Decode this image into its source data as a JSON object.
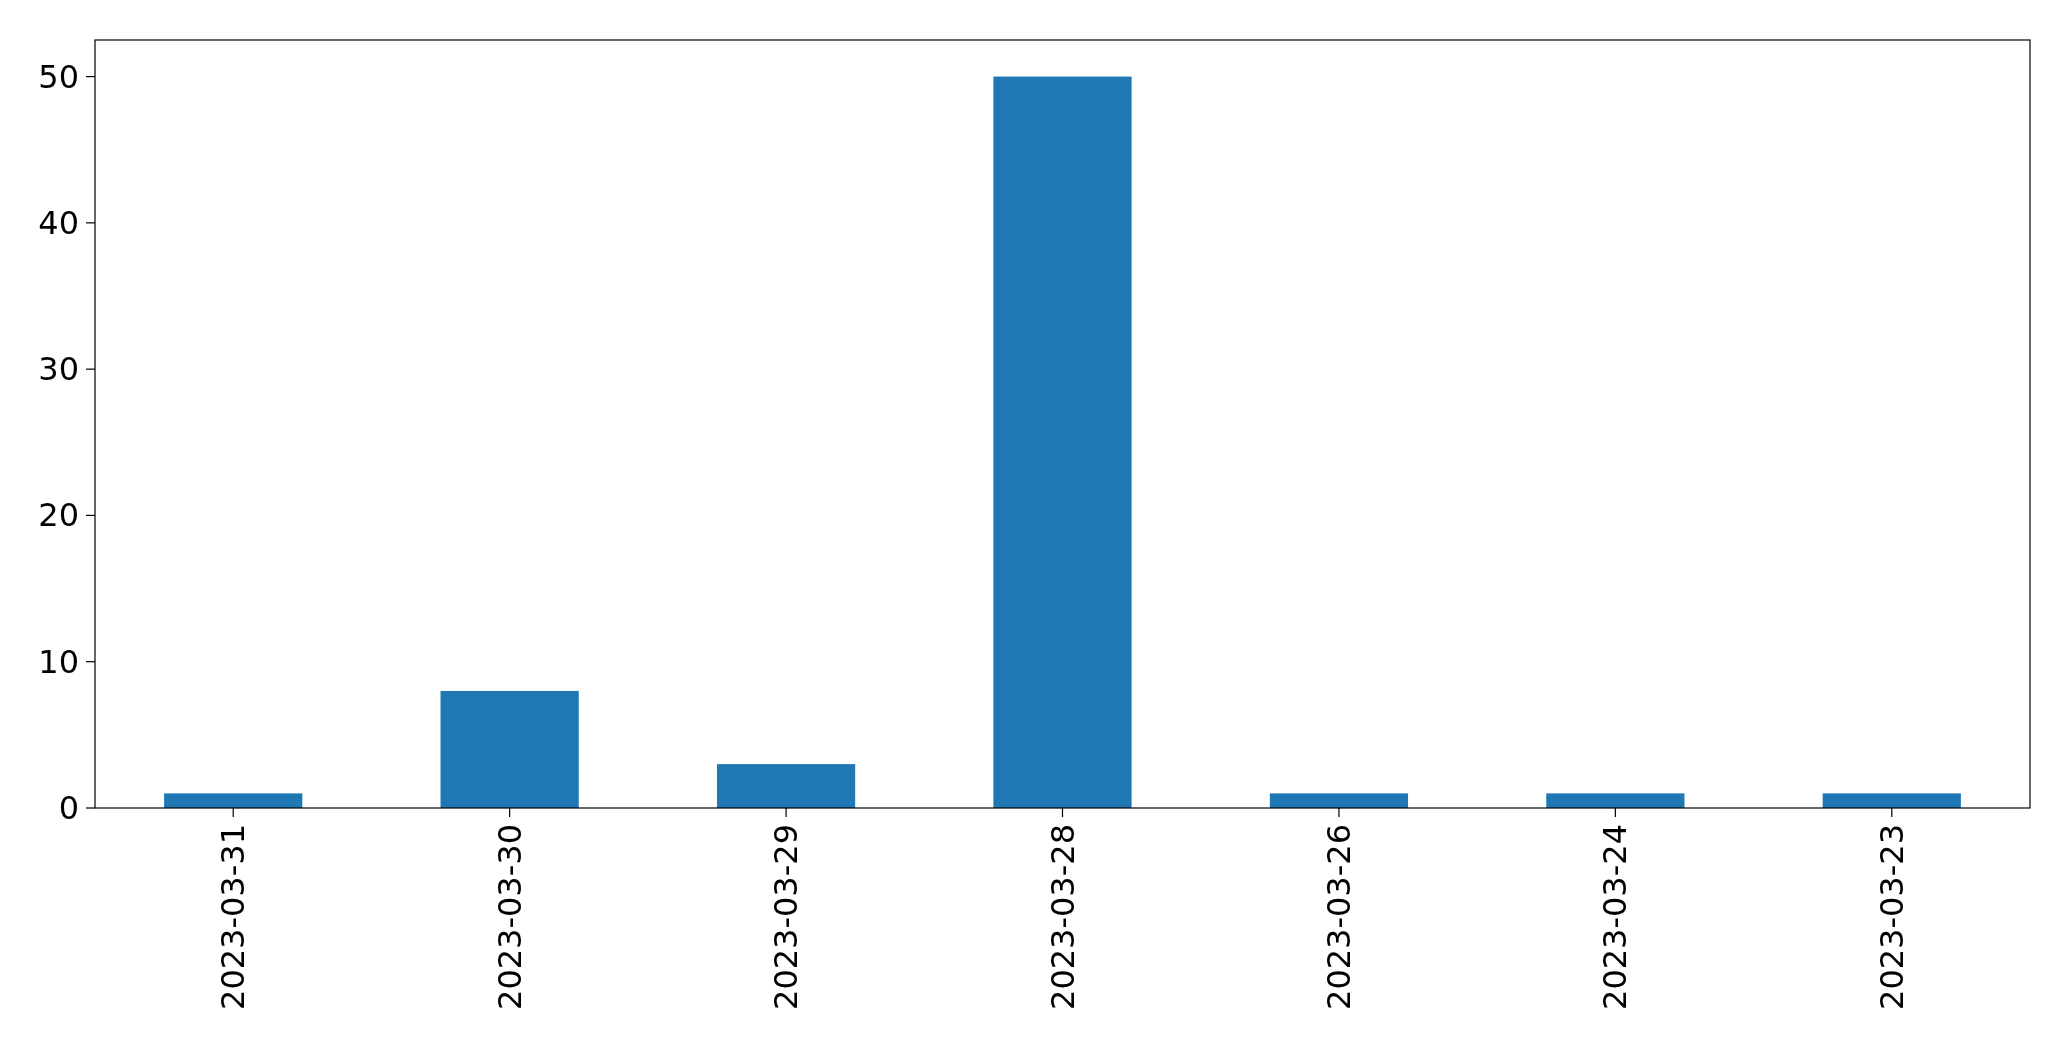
{
  "chart_data": {
    "type": "bar",
    "categories": [
      "2023-03-31",
      "2023-03-30",
      "2023-03-29",
      "2023-03-28",
      "2023-03-26",
      "2023-03-24",
      "2023-03-23"
    ],
    "values": [
      1,
      8,
      3,
      50,
      1,
      1,
      1
    ],
    "color": "#1f77b4",
    "ylim": [
      0,
      52.5
    ],
    "yticks": [
      0,
      10,
      20,
      30,
      40,
      50
    ],
    "grid": false
  }
}
